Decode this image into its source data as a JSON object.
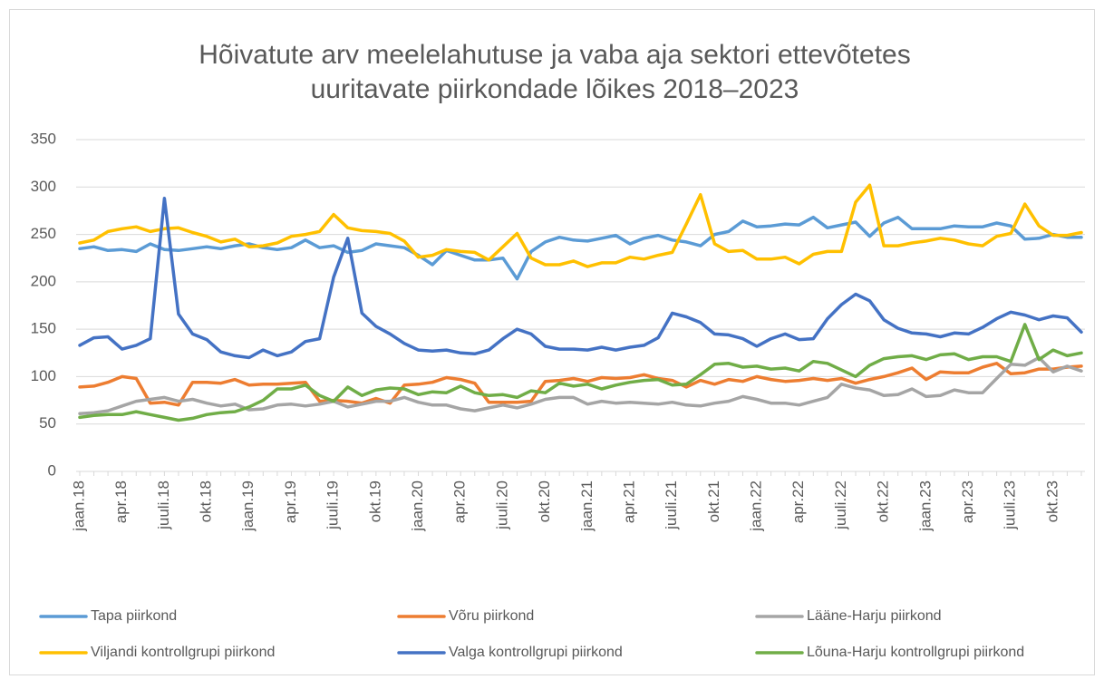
{
  "chart_data": {
    "type": "line",
    "title": [
      "Hõivatute arv meelelahutuse ja vaba aja sektori ettevõtetes",
      "uuritavate piirkondade lõikes 2018–2023"
    ],
    "categories": [
      "jaan.18",
      null,
      null,
      "apr.18",
      null,
      null,
      "juuli.18",
      null,
      null,
      "okt.18",
      null,
      null,
      "jaan.19",
      null,
      null,
      "apr.19",
      null,
      null,
      "juuli.19",
      null,
      null,
      "okt.19",
      null,
      null,
      "jaan.20",
      null,
      null,
      "apr.20",
      null,
      null,
      "juuli.20",
      null,
      null,
      "okt.20",
      null,
      null,
      "jaan.21",
      null,
      null,
      "apr.21",
      null,
      null,
      "juuli.21",
      null,
      null,
      "okt.21",
      null,
      null,
      "jaan.22",
      null,
      null,
      "apr.22",
      null,
      null,
      "juuli.22",
      null,
      null,
      "okt.22",
      null,
      null,
      "jaan.23",
      null,
      null,
      "apr.23",
      null,
      null,
      "juuli.23",
      null,
      null,
      "okt.23",
      null,
      null
    ],
    "ylim": [
      0,
      350
    ],
    "yticks": [
      0,
      50,
      100,
      150,
      200,
      250,
      300,
      350
    ],
    "grid": true,
    "legend": "bottom",
    "series": [
      {
        "name": "Tapa piirkond",
        "color": "#5b9bd5",
        "values": [
          235,
          237,
          233,
          234,
          232,
          240,
          234,
          233,
          235,
          237,
          235,
          238,
          240,
          236,
          234,
          236,
          244,
          236,
          238,
          231,
          233,
          240,
          238,
          236,
          228,
          218,
          233,
          228,
          223,
          223,
          225,
          203,
          232,
          242,
          247,
          244,
          243,
          246,
          249,
          240,
          246,
          249,
          244,
          242,
          238,
          250,
          253,
          264,
          258,
          259,
          261,
          260,
          268,
          257,
          260,
          263,
          248,
          262,
          268,
          256,
          256,
          256,
          259,
          258,
          258,
          262,
          259,
          245,
          246,
          250,
          247,
          247
        ]
      },
      {
        "name": "Võru piirkond",
        "color": "#ed7d31",
        "values": [
          89,
          90,
          94,
          100,
          98,
          72,
          73,
          70,
          94,
          94,
          93,
          97,
          91,
          92,
          92,
          93,
          94,
          74,
          75,
          74,
          72,
          77,
          72,
          91,
          92,
          94,
          99,
          97,
          93,
          73,
          73,
          73,
          74,
          95,
          96,
          98,
          95,
          99,
          98,
          99,
          102,
          98,
          96,
          89,
          96,
          92,
          97,
          95,
          100,
          97,
          95,
          96,
          98,
          96,
          98,
          93,
          97,
          100,
          104,
          109,
          97,
          105,
          104,
          104,
          110,
          114,
          103,
          104,
          108,
          108,
          110,
          111
        ]
      },
      {
        "name": "Lääne-Harju piirkond",
        "color": "#a5a5a5",
        "values": [
          61,
          62,
          64,
          69,
          74,
          76,
          78,
          74,
          76,
          72,
          69,
          71,
          65,
          66,
          70,
          71,
          69,
          71,
          74,
          68,
          71,
          74,
          74,
          78,
          73,
          70,
          70,
          66,
          64,
          67,
          70,
          67,
          71,
          76,
          78,
          78,
          71,
          74,
          72,
          73,
          72,
          71,
          73,
          70,
          69,
          72,
          74,
          79,
          76,
          72,
          72,
          70,
          74,
          78,
          92,
          88,
          86,
          80,
          81,
          87,
          79,
          80,
          86,
          83,
          83,
          98,
          113,
          112,
          120,
          105,
          111,
          106
        ]
      },
      {
        "name": "Viljandi kontrollgrupi piirkond",
        "color": "#ffc000",
        "values": [
          241,
          244,
          253,
          256,
          258,
          253,
          256,
          257,
          252,
          248,
          242,
          245,
          237,
          238,
          241,
          248,
          250,
          253,
          271,
          257,
          254,
          253,
          251,
          243,
          226,
          228,
          234,
          232,
          231,
          223,
          237,
          251,
          225,
          218,
          218,
          222,
          216,
          220,
          220,
          226,
          224,
          228,
          231,
          261,
          292,
          240,
          232,
          233,
          224,
          224,
          226,
          219,
          229,
          232,
          232,
          284,
          302,
          238,
          238,
          241,
          243,
          246,
          244,
          240,
          238,
          248,
          251,
          282,
          259,
          249,
          249,
          252
        ]
      },
      {
        "name": "Valga kontrollgrupi piirkond",
        "color": "#4472c4",
        "values": [
          133,
          141,
          142,
          129,
          133,
          140,
          288,
          166,
          145,
          139,
          126,
          122,
          120,
          128,
          122,
          126,
          137,
          140,
          205,
          246,
          167,
          153,
          145,
          135,
          128,
          127,
          128,
          125,
          124,
          128,
          140,
          150,
          145,
          132,
          129,
          129,
          128,
          131,
          128,
          131,
          133,
          141,
          167,
          163,
          157,
          145,
          144,
          140,
          132,
          140,
          145,
          139,
          140,
          161,
          176,
          187,
          180,
          160,
          151,
          146,
          145,
          142,
          146,
          145,
          152,
          161,
          168,
          165,
          160,
          164,
          162,
          147
        ]
      },
      {
        "name": "Lõuna-Harju kontrollgrupi piirkond",
        "color": "#70ad47",
        "values": [
          57,
          59,
          60,
          60,
          63,
          60,
          57,
          54,
          56,
          60,
          62,
          63,
          68,
          75,
          87,
          87,
          91,
          80,
          74,
          89,
          80,
          86,
          88,
          87,
          81,
          84,
          83,
          90,
          83,
          80,
          81,
          78,
          85,
          83,
          93,
          90,
          92,
          87,
          91,
          94,
          96,
          97,
          91,
          92,
          102,
          113,
          114,
          110,
          111,
          108,
          109,
          106,
          116,
          114,
          107,
          100,
          112,
          119,
          121,
          122,
          118,
          123,
          124,
          118,
          121,
          121,
          116,
          155,
          118,
          128,
          122,
          125
        ]
      }
    ]
  }
}
